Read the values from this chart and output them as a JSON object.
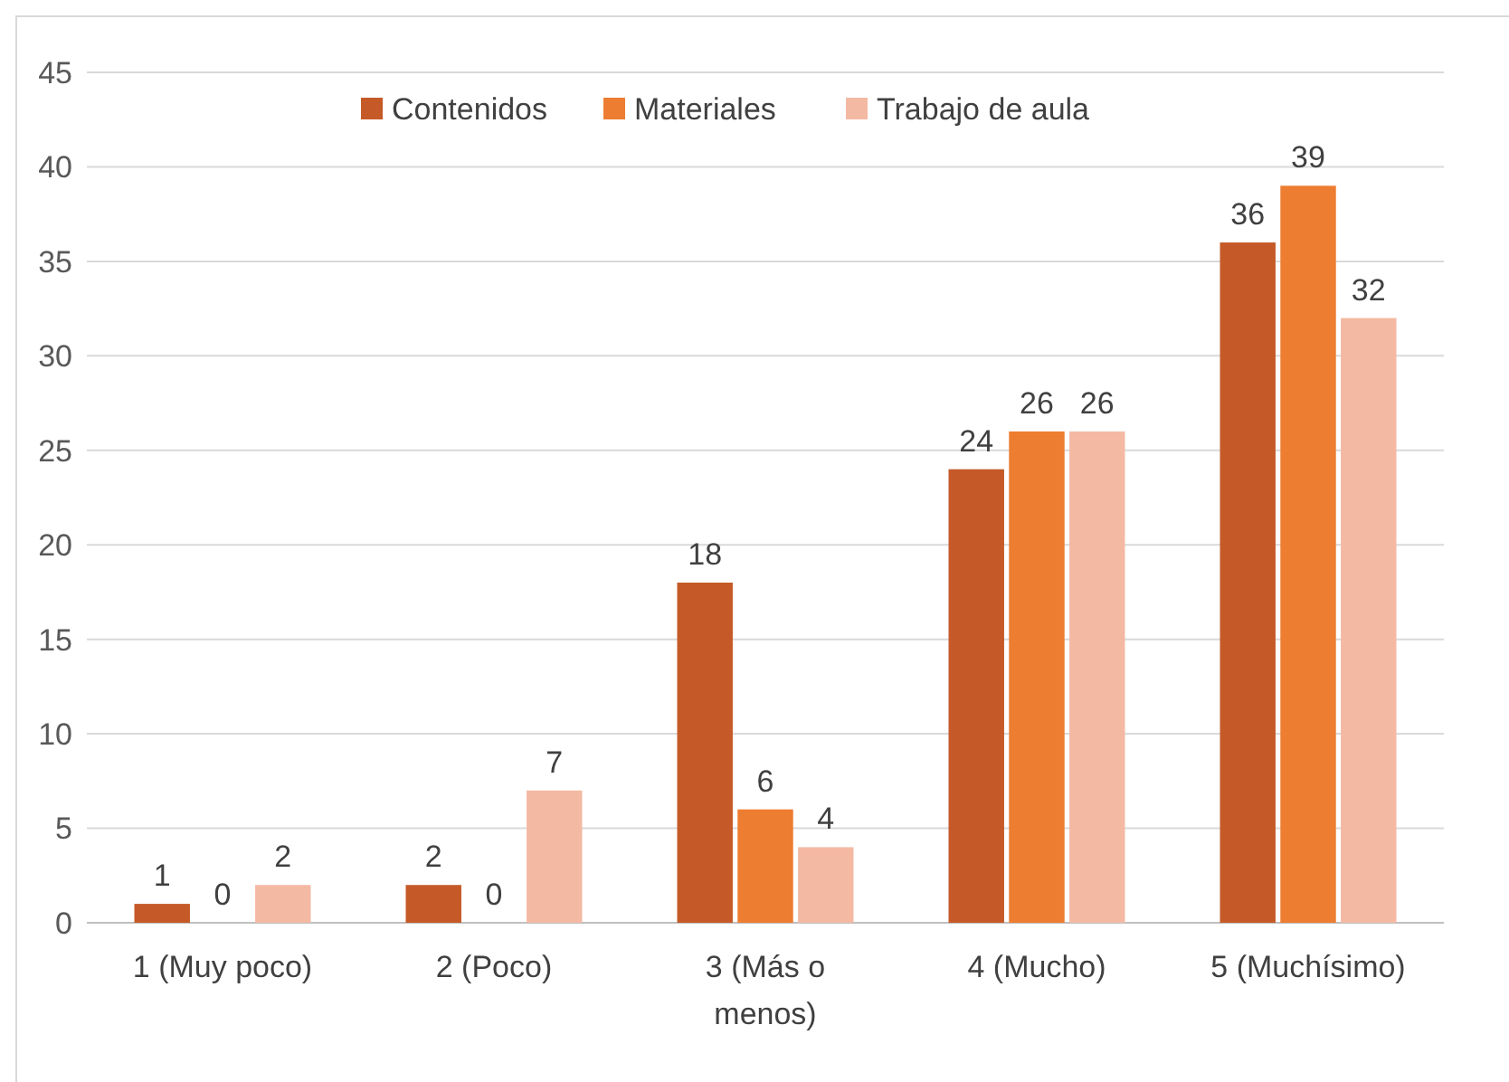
{
  "chart_data": {
    "type": "bar",
    "categories": [
      "1 (Muy poco)",
      "2 (Poco)",
      "3 (Más o menos)",
      "4 (Mucho)",
      "5 (Muchísimo)"
    ],
    "series": [
      {
        "name": "Contenidos",
        "color": "#c55a28",
        "values": [
          1,
          2,
          18,
          24,
          36
        ]
      },
      {
        "name": "Materiales",
        "color": "#ed7d31",
        "values": [
          0,
          0,
          6,
          26,
          39
        ]
      },
      {
        "name": "Trabajo de aula",
        "color": "#f4b9a3",
        "values": [
          2,
          7,
          4,
          26,
          32
        ]
      }
    ],
    "ylim": [
      0,
      45
    ],
    "yticks": [
      0,
      5,
      10,
      15,
      20,
      25,
      30,
      35,
      40,
      45
    ],
    "grid": "y",
    "legend": "top",
    "data_labels": true
  }
}
